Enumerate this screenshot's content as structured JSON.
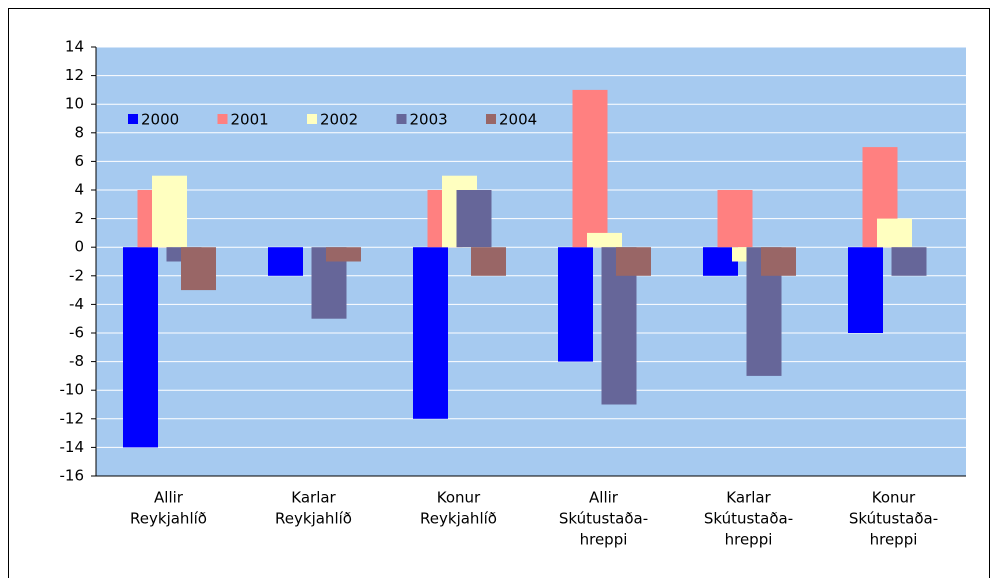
{
  "chart_data": {
    "type": "bar",
    "categories": [
      [
        "Allir",
        "Reykjahlíð"
      ],
      [
        "Karlar",
        "Reykjahlíð"
      ],
      [
        "Konur",
        "Reykjahlíð"
      ],
      [
        "Allir",
        "Skútustaða-",
        "hreppi"
      ],
      [
        "Karlar",
        "Skútustaða-",
        "hreppi"
      ],
      [
        "Konur",
        "Skútustaða-",
        "hreppi"
      ]
    ],
    "series": [
      {
        "name": "2000",
        "color": "#0000ff",
        "values": [
          -14,
          -2,
          -12,
          -8,
          -2,
          -6
        ]
      },
      {
        "name": "2001",
        "color": "#ff8080",
        "values": [
          4,
          0,
          4,
          11,
          4,
          7
        ]
      },
      {
        "name": "2002",
        "color": "#ffffc0",
        "values": [
          5,
          0,
          5,
          1,
          -1,
          2
        ]
      },
      {
        "name": "2003",
        "color": "#666699",
        "values": [
          -1,
          -5,
          4,
          -11,
          -9,
          -2
        ]
      },
      {
        "name": "2004",
        "color": "#996666",
        "values": [
          -3,
          -1,
          -2,
          -2,
          -2,
          0
        ]
      }
    ],
    "ylim": [
      -16,
      14
    ],
    "yticks": [
      -16,
      -14,
      -12,
      -10,
      -8,
      -6,
      -4,
      -2,
      0,
      2,
      4,
      6,
      8,
      10,
      12,
      14
    ],
    "grid": true,
    "legend": "top-left"
  }
}
